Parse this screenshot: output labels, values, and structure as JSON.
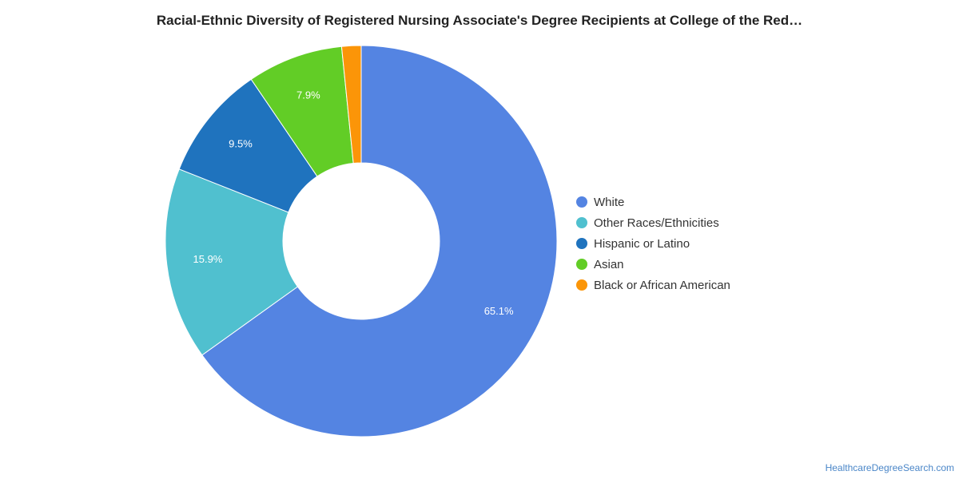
{
  "chart_data": {
    "type": "pie",
    "title": "Racial-Ethnic Diversity of Registered Nursing Associate's Degree Recipients at College of the Red…",
    "donut": true,
    "slices": [
      {
        "label": "White",
        "value": 65.1,
        "display": "65.1%",
        "color": "#5484e2"
      },
      {
        "label": "Other Races/Ethnicities",
        "value": 15.9,
        "display": "15.9%",
        "color": "#50c0cf"
      },
      {
        "label": "Hispanic or Latino",
        "value": 9.5,
        "display": "9.5%",
        "color": "#1f73be"
      },
      {
        "label": "Asian",
        "value": 7.9,
        "display": "7.9%",
        "color": "#62cd26"
      },
      {
        "label": "Black or African American",
        "value": 1.6,
        "display": "",
        "color": "#fb9508"
      }
    ],
    "legend_position": "right"
  },
  "footer": {
    "credit": "HealthcareDegreeSearch.com"
  }
}
